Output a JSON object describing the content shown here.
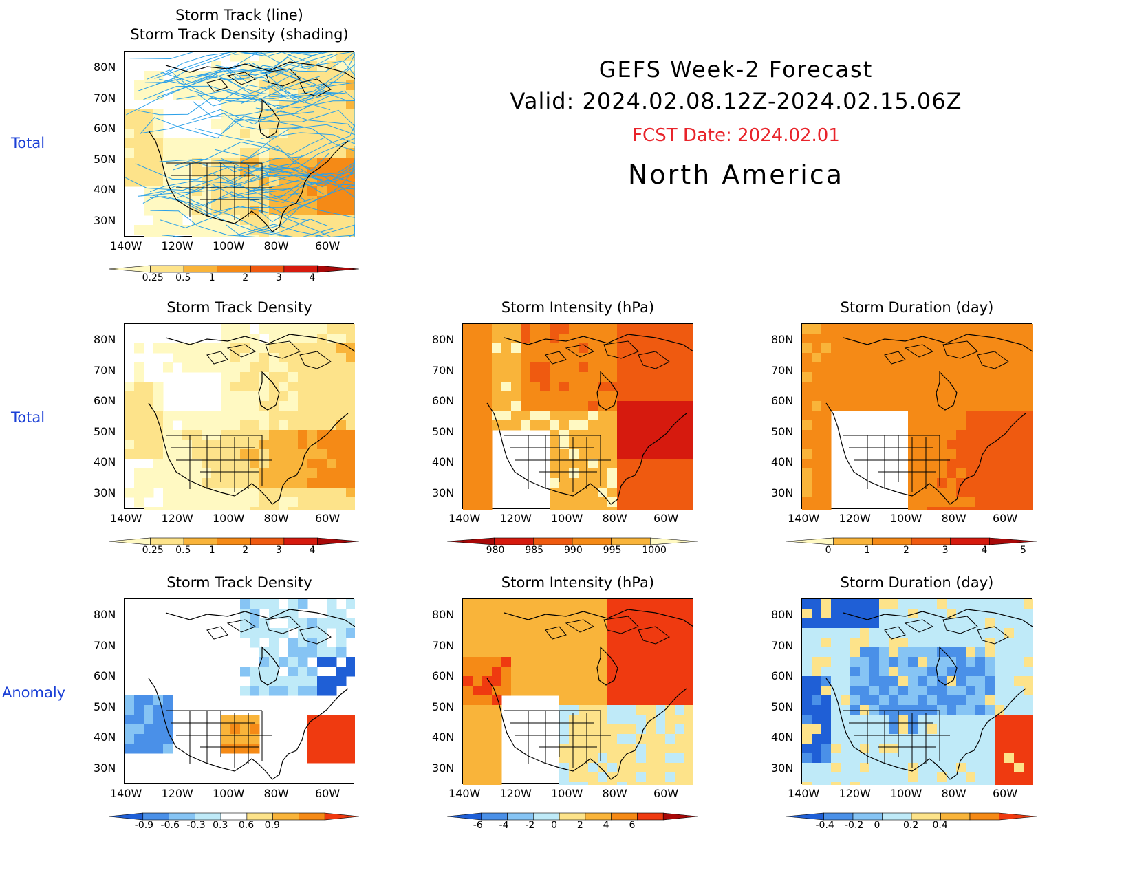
{
  "header": {
    "title": "GEFS Week-2 Forecast",
    "valid": "Valid: 2024.02.08.12Z-2024.02.15.06Z",
    "fcst_date": "FCST Date: 2024.02.01",
    "region": "North America",
    "fcst_color": "#e8232a"
  },
  "row_labels": [
    "Total",
    "Total",
    "Anomaly"
  ],
  "axes": {
    "lat": [
      "80N",
      "70N",
      "60N",
      "50N",
      "40N",
      "30N"
    ],
    "lon": [
      "140W",
      "120W",
      "100W",
      "80W",
      "60W"
    ]
  },
  "panels": [
    {
      "id": "p1",
      "title1": "Storm Track (line)",
      "title2": "Storm Track Density (shading)",
      "cbar": {
        "labels": [
          "0.25",
          "0.5",
          "1",
          "2",
          "3",
          "4"
        ],
        "colors": [
          "#fff9c2",
          "#fde38a",
          "#f9b43a",
          "#f58a16",
          "#ef5a10",
          "#d61a0e",
          "#a80808"
        ]
      }
    },
    {
      "id": "p2",
      "title1": "Storm Track Density",
      "cbar": {
        "labels": [
          "0.25",
          "0.5",
          "1",
          "2",
          "3",
          "4"
        ],
        "colors": [
          "#fff9c2",
          "#fde38a",
          "#f9b43a",
          "#f58a16",
          "#ef5a10",
          "#d61a0e",
          "#a80808"
        ]
      }
    },
    {
      "id": "p3",
      "title1": "Storm Intensity (hPa)",
      "cbar": {
        "labels": [
          "980",
          "985",
          "990",
          "995",
          "1000"
        ],
        "colors": [
          "#a80808",
          "#d61a0e",
          "#ef5a10",
          "#f58a16",
          "#f9b43a",
          "#fff9c2"
        ]
      }
    },
    {
      "id": "p4",
      "title1": "Storm Duration (day)",
      "cbar": {
        "labels": [
          "0",
          "1",
          "2",
          "3",
          "4",
          "5"
        ],
        "colors": [
          "#fff9c2",
          "#f9b43a",
          "#f58a16",
          "#ef5a10",
          "#d61a0e",
          "#a80808"
        ]
      }
    },
    {
      "id": "p5",
      "title1": "Storm Track Density",
      "cbar": {
        "labels": [
          "-0.9",
          "-0.6",
          "-0.3",
          "0.3",
          "0.6",
          "0.9"
        ],
        "colors": [
          "#1f5fd6",
          "#4a90e8",
          "#86c4f4",
          "#bfeaf8",
          "#ffffff",
          "#fde38a",
          "#f9b43a",
          "#f58a16",
          "#ef3a10"
        ]
      }
    },
    {
      "id": "p6",
      "title1": "Storm Intensity (hPa)",
      "cbar": {
        "labels": [
          "-6",
          "-4",
          "-2",
          "0",
          "2",
          "4",
          "6"
        ],
        "colors": [
          "#1f5fd6",
          "#4a90e8",
          "#86c4f4",
          "#bfeaf8",
          "#fde38a",
          "#f9b43a",
          "#f58a16",
          "#ef3a10",
          "#a80808"
        ]
      }
    },
    {
      "id": "p7",
      "title1": "Storm Duration (day)",
      "cbar": {
        "labels": [
          "-0.4",
          "-0.2",
          "0",
          "0.2",
          "0.4"
        ],
        "colors": [
          "#1f5fd6",
          "#4a90e8",
          "#86c4f4",
          "#bfeaf8",
          "#fde38a",
          "#f9b43a",
          "#f58a16",
          "#ef3a10"
        ]
      }
    }
  ]
}
